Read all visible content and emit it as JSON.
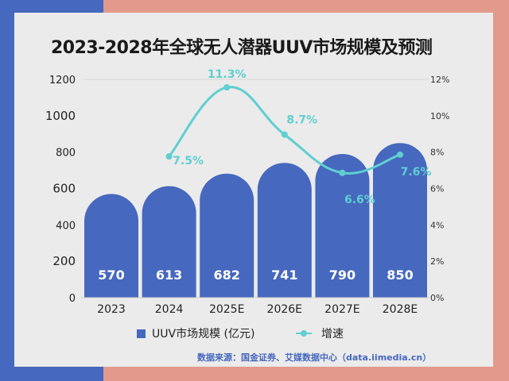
{
  "chart_data": {
    "type": "bar",
    "title": "2023-2028年全球无人潜器UUV市场规模及预测",
    "categories": [
      "2023",
      "2024",
      "2025E",
      "2026E",
      "2027E",
      "2028E"
    ],
    "series": [
      {
        "name": "UUV市场规模 (亿元)",
        "type": "bar",
        "axis": "left",
        "values": [
          570,
          613,
          682,
          741,
          790,
          850
        ],
        "color": "#4668be"
      },
      {
        "name": "增速",
        "type": "line",
        "axis": "right",
        "values": [
          null,
          7.5,
          11.3,
          8.7,
          6.6,
          7.6
        ],
        "labels": [
          "",
          "7.5%",
          "11.3%",
          "8.7%",
          "6.6%",
          "7.6%"
        ],
        "color": "#5fcfd0"
      }
    ],
    "yleft": {
      "range": [
        0,
        1200
      ],
      "ticks": [
        "0",
        "200",
        "400",
        "600",
        "800",
        "1000",
        "1200"
      ]
    },
    "yright": {
      "range": [
        0,
        12
      ],
      "ticks": [
        "0%",
        "2%",
        "4%",
        "6%",
        "8%",
        "10%",
        "12%"
      ]
    },
    "legend": "bottom",
    "grid": false
  },
  "source": "数据来源：国金证券、艾媒数据中心（data.iimedia.cn）"
}
